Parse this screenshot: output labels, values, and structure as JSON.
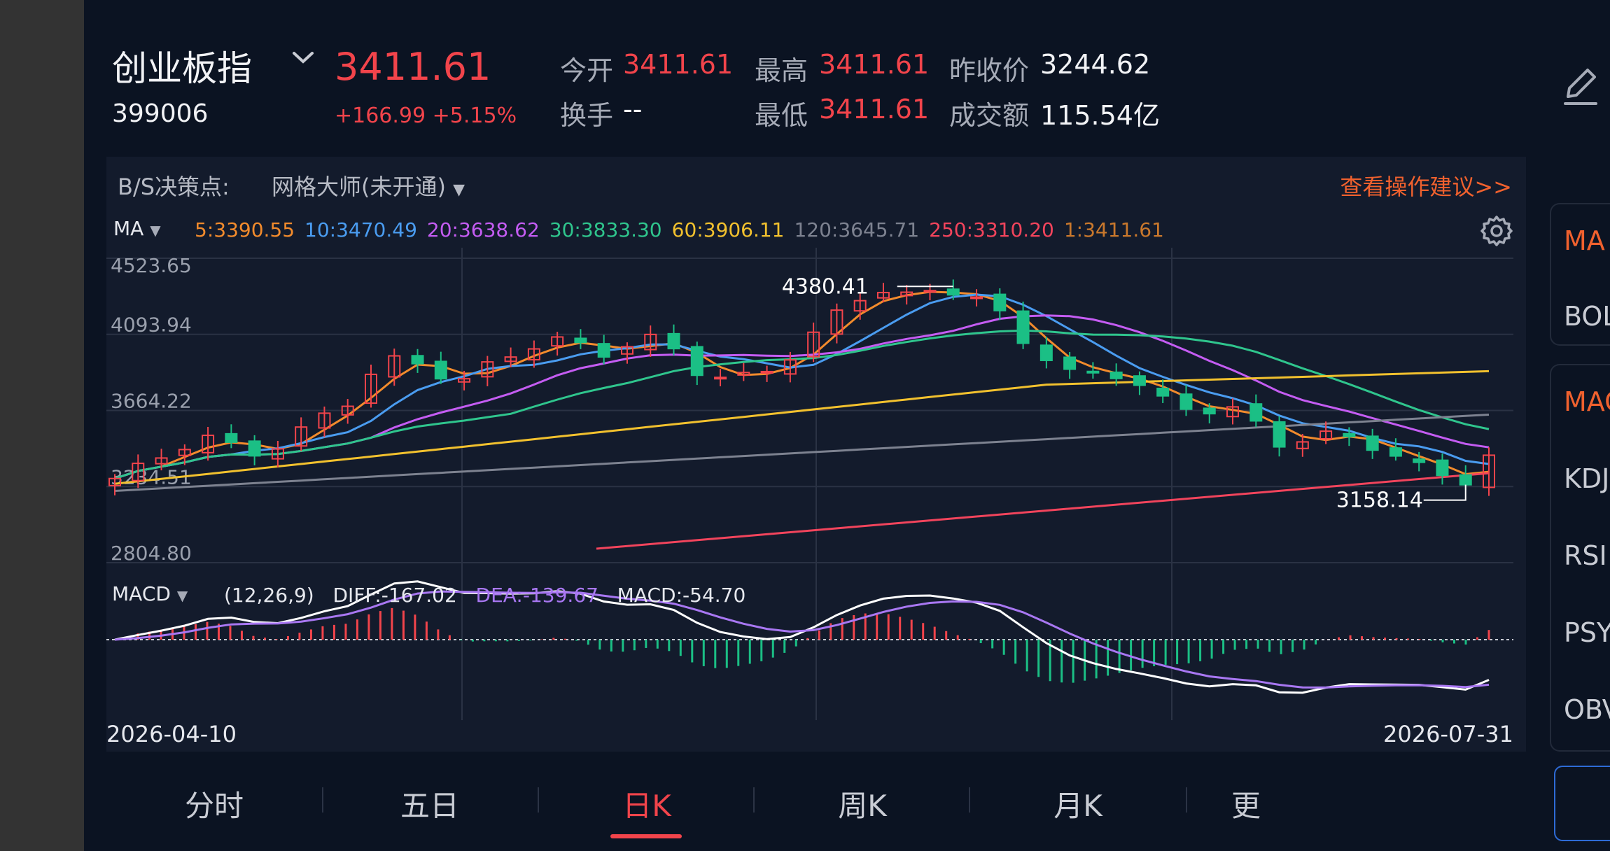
{
  "header": {
    "index_name": "创业板指",
    "index_code": "399006",
    "price": "3411.61",
    "change": "+166.99",
    "change_pct": "+5.15%",
    "stats": {
      "open_label": "今开",
      "open_value": "3411.61",
      "high_label": "最高",
      "high_value": "3411.61",
      "prev_close_label": "昨收价",
      "prev_close_value": "3244.62",
      "turnover_label": "换手",
      "turnover_value": "--",
      "low_label": "最低",
      "low_value": "3411.61",
      "amount_label": "成交额",
      "amount_value": "115.54亿"
    },
    "icons": {
      "dropdown": "chevron-down-icon",
      "edit": "pencil-icon"
    }
  },
  "decision_bar": {
    "label": "B/S决策点:",
    "tool": "网格大师(未开通)",
    "link": "查看操作建议>>"
  },
  "ma_legend": {
    "name": "MA",
    "items": [
      {
        "text": "5:3390.55",
        "color": "#f28b2c"
      },
      {
        "text": "10:3470.49",
        "color": "#4a9cf0"
      },
      {
        "text": "20:3638.62",
        "color": "#c45cf2"
      },
      {
        "text": "30:3833.30",
        "color": "#2fc58d"
      },
      {
        "text": "60:3906.11",
        "color": "#f2c12e"
      },
      {
        "text": "120:3645.71",
        "color": "#7d8290"
      },
      {
        "text": "250:3310.20",
        "color": "#f2445c"
      },
      {
        "text": "1:3411.61",
        "color": "#c9782c"
      }
    ]
  },
  "macd_legend": {
    "name": "MACD",
    "params": "(12,26,9)",
    "diff": "DIFF:-167.02",
    "dea": "DEA:-139.67",
    "macd": "MACD:-54.70"
  },
  "chart_data": {
    "type": "candlestick",
    "y_ticks": [
      "4523.65",
      "4093.94",
      "3664.22",
      "3234.51",
      "2804.80"
    ],
    "ylim": [
      2804.8,
      4523.65
    ],
    "x_start": "2026-04-10",
    "x_end": "2026-07-31",
    "annotations": [
      {
        "text": "4380.41",
        "kind": "max"
      },
      {
        "text": "3158.14",
        "kind": "min"
      }
    ],
    "colors": {
      "up": "#f2444b",
      "down": "#1bbf85",
      "diff": "#ffffff",
      "dea": "#a877f2"
    }
  },
  "tabs": [
    {
      "label": "分时"
    },
    {
      "label": "五日"
    },
    {
      "label": "日K"
    },
    {
      "label": "周K"
    },
    {
      "label": "月K"
    },
    {
      "label": "更"
    }
  ],
  "side_indicators": {
    "main": [
      "MA",
      "BOL"
    ],
    "sub": [
      "MAC",
      "KDJ",
      "RSI",
      "PSY",
      "OBV"
    ]
  }
}
